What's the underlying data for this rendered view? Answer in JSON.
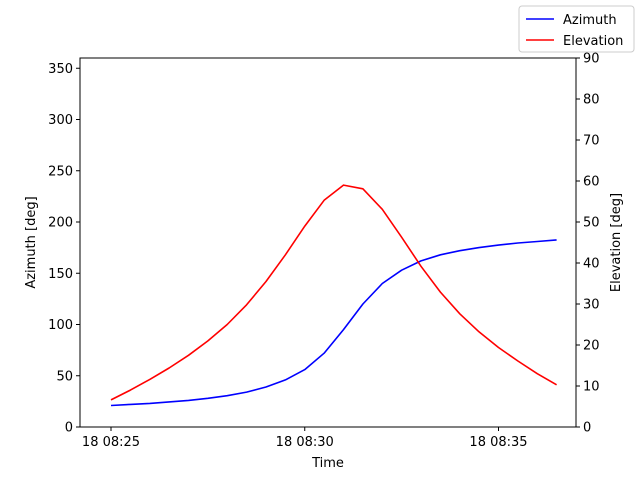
{
  "chart_data": {
    "type": "line",
    "xlabel": "Time",
    "ylabel_left": "Azimuth [deg]",
    "ylabel_right": "Elevation [deg]",
    "x_ticks": [
      "18 08:25",
      "18 08:30",
      "18 08:35"
    ],
    "x_tick_minutes": [
      0,
      5,
      10
    ],
    "xlim_minutes": [
      -0.8,
      12.0
    ],
    "ylim_left": [
      0,
      360
    ],
    "ylim_right": [
      0,
      90
    ],
    "yticks_left": [
      0,
      50,
      100,
      150,
      200,
      250,
      300,
      350
    ],
    "yticks_right": [
      0,
      10,
      20,
      30,
      40,
      50,
      60,
      70,
      80,
      90
    ],
    "grid": false,
    "legend_position": "top-right",
    "series": [
      {
        "name": "Azimuth",
        "axis": "left",
        "color": "#0000ff",
        "x_minutes": [
          0,
          0.5,
          1,
          1.5,
          2,
          2.5,
          3,
          3.5,
          4,
          4.5,
          5,
          5.5,
          6,
          6.5,
          7,
          7.5,
          8,
          8.5,
          9,
          9.5,
          10,
          10.5,
          11,
          11.5
        ],
        "values": [
          21,
          22,
          23,
          24.5,
          26,
          28,
          30.5,
          34,
          39,
          46,
          56,
          72,
          95,
          120,
          140,
          153,
          162,
          168,
          172,
          175,
          177.5,
          179.5,
          181,
          182.5
        ]
      },
      {
        "name": "Elevation",
        "axis": "right",
        "color": "#ff0000",
        "x_minutes": [
          0,
          0.5,
          1,
          1.5,
          2,
          2.5,
          3,
          3.5,
          4,
          4.5,
          5,
          5.5,
          6,
          6.5,
          7,
          7.5,
          8,
          8.5,
          9,
          9.5,
          10,
          10.5,
          11,
          11.5
        ],
        "values": [
          6.6,
          9,
          11.6,
          14.4,
          17.5,
          21,
          25,
          29.8,
          35.5,
          42,
          49,
          55.3,
          59,
          58.1,
          53.1,
          46.3,
          39.2,
          32.9,
          27.6,
          23.2,
          19.4,
          16.1,
          13,
          10.3
        ]
      }
    ]
  }
}
